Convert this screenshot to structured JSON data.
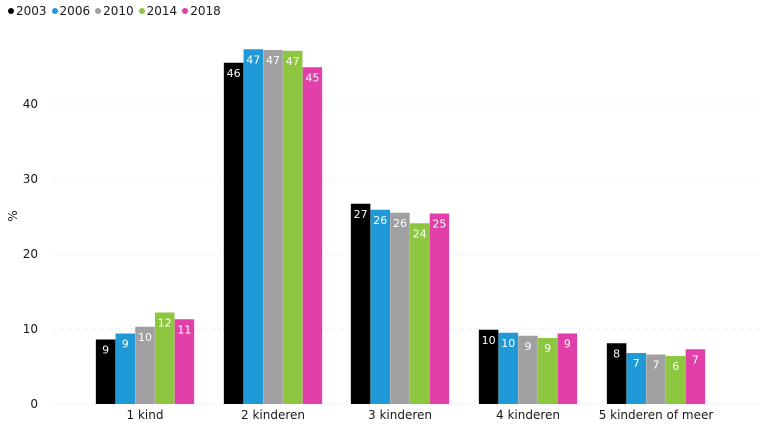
{
  "chart_data": {
    "type": "bar",
    "ylabel": "%",
    "ylim": [
      0,
      50
    ],
    "yticks": [
      0,
      10,
      20,
      30,
      40
    ],
    "grid": true,
    "legend_position": "top-left",
    "categories": [
      "1 kind",
      "2 kinderen",
      "3 kinderen",
      "4 kinderen",
      "5 kinderen of meer"
    ],
    "series": [
      {
        "name": "2003",
        "color": "#000000",
        "label_color": "#ffffff",
        "values": [
          9,
          46,
          27,
          10,
          8
        ],
        "bar_values": [
          8.6,
          45.5,
          26.7,
          9.9,
          8.1
        ]
      },
      {
        "name": "2006",
        "color": "#1f9ad6",
        "label_color": "#ffffff",
        "values": [
          9,
          47,
          26,
          10,
          7
        ],
        "bar_values": [
          9.4,
          47.3,
          25.9,
          9.5,
          6.8
        ]
      },
      {
        "name": "2010",
        "color": "#a0a0a3",
        "label_color": "#ffffff",
        "values": [
          10,
          47,
          26,
          9,
          7
        ],
        "bar_values": [
          10.3,
          47.2,
          25.5,
          9.1,
          6.6
        ]
      },
      {
        "name": "2014",
        "color": "#8dc63f",
        "label_color": "#ffffff",
        "values": [
          12,
          47,
          24,
          9,
          6
        ],
        "bar_values": [
          12.2,
          47.1,
          24.1,
          8.8,
          6.4
        ]
      },
      {
        "name": "2018",
        "color": "#e040a8",
        "label_color": "#ffffff",
        "values": [
          11,
          45,
          25,
          9,
          7
        ],
        "bar_values": [
          11.3,
          44.9,
          25.4,
          9.4,
          7.3
        ]
      }
    ]
  }
}
